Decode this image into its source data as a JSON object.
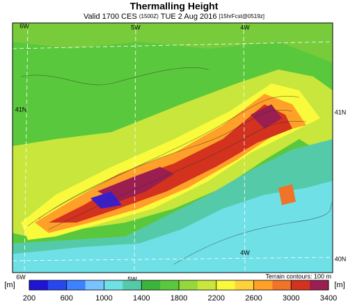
{
  "map": {
    "title": "Thermalling Height",
    "subtitle": [
      "Valid 1700 CES",
      "(1500Z)",
      "TUE 2 Aug 2016",
      "[15hrFcst@0519z]"
    ],
    "labels": {
      "lon_top": [
        "6W",
        "5W",
        "4W"
      ],
      "lat_left": "41N",
      "lat_right": [
        "41N",
        "40N"
      ],
      "lon_inner": "4W",
      "lon_bottom": [
        "6W",
        "5W"
      ]
    },
    "unit": "[m]",
    "contour_note": "Terrain contours: 100 m",
    "colorbar": {
      "lim": [
        200,
        3400
      ],
      "ticks": [
        200,
        600,
        1000,
        1400,
        1800,
        2200,
        2600,
        3000,
        3400
      ],
      "colors": [
        "#1e14d2",
        "#2846f0",
        "#3c82ff",
        "#78c3ff",
        "#6ee0e6",
        "#55caa8",
        "#3cb43c",
        "#5ac83c",
        "#96d73c",
        "#c8e63c",
        "#fafa3c",
        "#ffd23c",
        "#ffa028",
        "#f0732a",
        "#d2321e",
        "#9b1e50"
      ]
    }
  }
}
